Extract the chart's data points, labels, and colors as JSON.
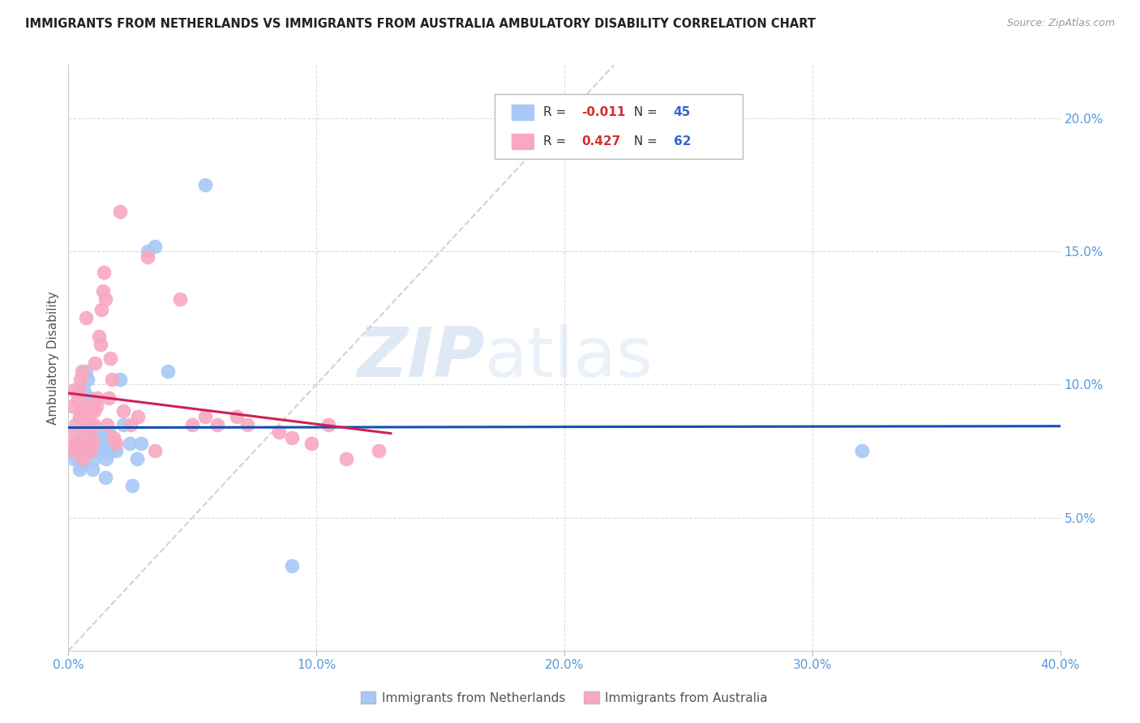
{
  "title": "IMMIGRANTS FROM NETHERLANDS VS IMMIGRANTS FROM AUSTRALIA AMBULATORY DISABILITY CORRELATION CHART",
  "source": "Source: ZipAtlas.com",
  "ylabel": "Ambulatory Disability",
  "legend1_label": "Immigrants from Netherlands",
  "legend2_label": "Immigrants from Australia",
  "R1": "-0.011",
  "N1": "45",
  "R2": "0.427",
  "N2": "62",
  "color_blue": "#A8C8F8",
  "color_pink": "#F8A8C0",
  "color_blue_line": "#1050B0",
  "color_pink_line": "#D02050",
  "color_diag": "#D8C0C0",
  "watermark_zip": "ZIP",
  "watermark_atlas": "atlas",
  "nl_x": [
    0.18,
    0.22,
    0.38,
    0.45,
    0.5,
    0.55,
    0.6,
    0.62,
    0.68,
    0.72,
    0.78,
    0.82,
    0.88,
    0.92,
    0.95,
    0.98,
    1.02,
    1.08,
    1.12,
    1.18,
    1.22,
    1.28,
    1.32,
    1.38,
    1.42,
    1.48,
    1.52,
    1.58,
    1.62,
    1.68,
    1.72,
    1.82,
    1.92,
    2.08,
    2.22,
    2.48,
    2.58,
    2.78,
    2.92,
    3.2,
    3.5,
    4.0,
    5.5,
    9.0,
    32.0
  ],
  "nl_y": [
    7.5,
    7.2,
    7.8,
    6.8,
    7.0,
    7.5,
    9.8,
    8.2,
    9.2,
    10.5,
    10.2,
    7.8,
    9.5,
    7.8,
    7.5,
    6.8,
    7.2,
    7.5,
    7.8,
    8.2,
    7.5,
    7.8,
    8.0,
    7.5,
    7.8,
    6.5,
    7.2,
    7.8,
    8.2,
    7.8,
    7.5,
    7.8,
    7.5,
    10.2,
    8.5,
    7.8,
    6.2,
    7.2,
    7.8,
    15.0,
    15.2,
    10.5,
    17.5,
    3.2,
    7.5
  ],
  "au_x": [
    0.1,
    0.15,
    0.18,
    0.22,
    0.25,
    0.28,
    0.32,
    0.35,
    0.38,
    0.42,
    0.45,
    0.48,
    0.52,
    0.55,
    0.58,
    0.62,
    0.65,
    0.68,
    0.72,
    0.75,
    0.78,
    0.82,
    0.85,
    0.88,
    0.92,
    0.95,
    0.98,
    1.02,
    1.05,
    1.08,
    1.12,
    1.18,
    1.22,
    1.28,
    1.32,
    1.38,
    1.42,
    1.48,
    1.55,
    1.62,
    1.68,
    1.75,
    1.82,
    1.92,
    2.08,
    2.22,
    2.5,
    2.8,
    3.2,
    3.5,
    4.5,
    5.0,
    5.5,
    6.0,
    6.8,
    7.2,
    8.5,
    9.0,
    9.8,
    10.5,
    11.2,
    12.5
  ],
  "au_y": [
    7.5,
    9.2,
    7.8,
    9.8,
    8.2,
    8.5,
    7.8,
    7.5,
    9.5,
    9.8,
    8.8,
    10.2,
    9.0,
    10.5,
    7.2,
    8.8,
    8.5,
    7.8,
    12.5,
    8.0,
    9.0,
    7.8,
    8.5,
    9.2,
    7.5,
    8.0,
    7.8,
    8.5,
    9.0,
    10.8,
    9.2,
    9.5,
    11.8,
    11.5,
    12.8,
    13.5,
    14.2,
    13.2,
    8.5,
    9.5,
    11.0,
    10.2,
    8.0,
    7.8,
    16.5,
    9.0,
    8.5,
    8.8,
    14.8,
    7.5,
    13.2,
    8.5,
    8.8,
    8.5,
    8.8,
    8.5,
    8.2,
    8.0,
    7.8,
    8.5,
    7.2,
    7.5
  ],
  "xlim": [
    0,
    40
  ],
  "ylim": [
    0,
    22
  ],
  "diag_x1": 0,
  "diag_y1": 0,
  "diag_x2": 22,
  "diag_y2": 22,
  "nl_line_x": [
    0,
    40
  ],
  "au_line_x": [
    0,
    13
  ]
}
